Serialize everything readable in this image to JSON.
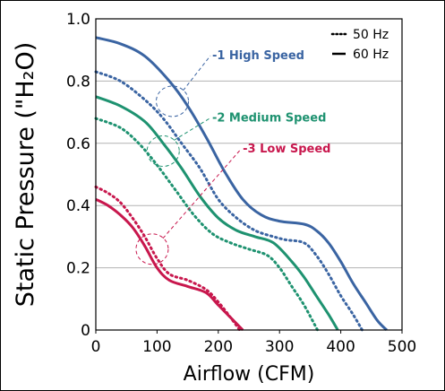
{
  "chart_data": {
    "type": "line",
    "title": "",
    "xlabel": "Airflow (CFM)",
    "ylabel": "Static Pressure (\"H₂O)",
    "xlim": [
      0,
      500
    ],
    "ylim": [
      0,
      1.0
    ],
    "x_ticks": [
      "0",
      "100",
      "200",
      "300",
      "400",
      "500"
    ],
    "y_ticks": [
      "0",
      "0.2",
      "0.4",
      "0.6",
      "0.8",
      "1.0"
    ],
    "grid": "horizontal",
    "legend": {
      "position": "top-right",
      "entries": [
        {
          "label": "50 Hz",
          "style": "dotted"
        },
        {
          "label": "60 Hz",
          "style": "solid"
        }
      ]
    },
    "series": [
      {
        "name": "-1 High Speed",
        "frequency": "60 Hz",
        "style": "solid",
        "color": "#3a64a2",
        "x": [
          0,
          40,
          80,
          120,
          150,
          180,
          210,
          240,
          270,
          300,
          340,
          360,
          380,
          400,
          420,
          440,
          460,
          475
        ],
        "y": [
          0.94,
          0.92,
          0.88,
          0.8,
          0.72,
          0.62,
          0.51,
          0.42,
          0.37,
          0.35,
          0.34,
          0.32,
          0.28,
          0.22,
          0.15,
          0.09,
          0.03,
          0.0
        ]
      },
      {
        "name": "-1 High Speed",
        "frequency": "50 Hz",
        "style": "dotted",
        "color": "#3a64a2",
        "x": [
          0,
          40,
          80,
          110,
          140,
          170,
          200,
          230,
          260,
          290,
          310,
          340,
          360,
          380,
          400,
          420,
          435
        ],
        "y": [
          0.83,
          0.8,
          0.74,
          0.68,
          0.6,
          0.52,
          0.42,
          0.36,
          0.32,
          0.3,
          0.29,
          0.28,
          0.24,
          0.18,
          0.11,
          0.05,
          0.0
        ]
      },
      {
        "name": "-2 Medium Speed",
        "frequency": "60 Hz",
        "style": "solid",
        "color": "#1e9270",
        "x": [
          0,
          40,
          80,
          110,
          140,
          170,
          200,
          230,
          260,
          290,
          320,
          340,
          360,
          380,
          395
        ],
        "y": [
          0.75,
          0.72,
          0.67,
          0.6,
          0.52,
          0.43,
          0.36,
          0.32,
          0.3,
          0.28,
          0.22,
          0.17,
          0.11,
          0.05,
          0.0
        ]
      },
      {
        "name": "-2 Medium Speed",
        "frequency": "50 Hz",
        "style": "dotted",
        "color": "#1e9270",
        "x": [
          0,
          40,
          70,
          100,
          130,
          160,
          190,
          220,
          250,
          280,
          300,
          320,
          340,
          362
        ],
        "y": [
          0.68,
          0.65,
          0.6,
          0.53,
          0.45,
          0.37,
          0.31,
          0.28,
          0.26,
          0.24,
          0.2,
          0.14,
          0.08,
          0.0
        ]
      },
      {
        "name": "-3 Low Speed",
        "frequency": "60 Hz",
        "style": "solid",
        "color": "#c8174d",
        "x": [
          0,
          20,
          40,
          60,
          80,
          100,
          120,
          150,
          180,
          200,
          220,
          240
        ],
        "y": [
          0.42,
          0.4,
          0.37,
          0.33,
          0.27,
          0.2,
          0.16,
          0.14,
          0.12,
          0.08,
          0.04,
          0.0
        ]
      },
      {
        "name": "-3 Low Speed",
        "frequency": "50 Hz",
        "style": "dotted",
        "color": "#c8174d",
        "x": [
          0,
          20,
          40,
          60,
          80,
          100,
          120,
          150,
          180,
          200,
          220,
          235
        ],
        "y": [
          0.46,
          0.44,
          0.41,
          0.36,
          0.3,
          0.23,
          0.18,
          0.16,
          0.13,
          0.09,
          0.04,
          0.0
        ]
      }
    ],
    "annotations": [
      {
        "text": "-1 High Speed",
        "color": "#3a64a2",
        "target": [
          125,
          0.735
        ],
        "label_at": [
          190,
          0.87
        ]
      },
      {
        "text": "-2 Medium Speed",
        "color": "#1e9270",
        "target": [
          110,
          0.575
        ],
        "label_at": [
          190,
          0.67
        ]
      },
      {
        "text": "-3 Low Speed",
        "color": "#c8174d",
        "target": [
          92,
          0.26
        ],
        "label_at": [
          240,
          0.57
        ]
      }
    ]
  }
}
